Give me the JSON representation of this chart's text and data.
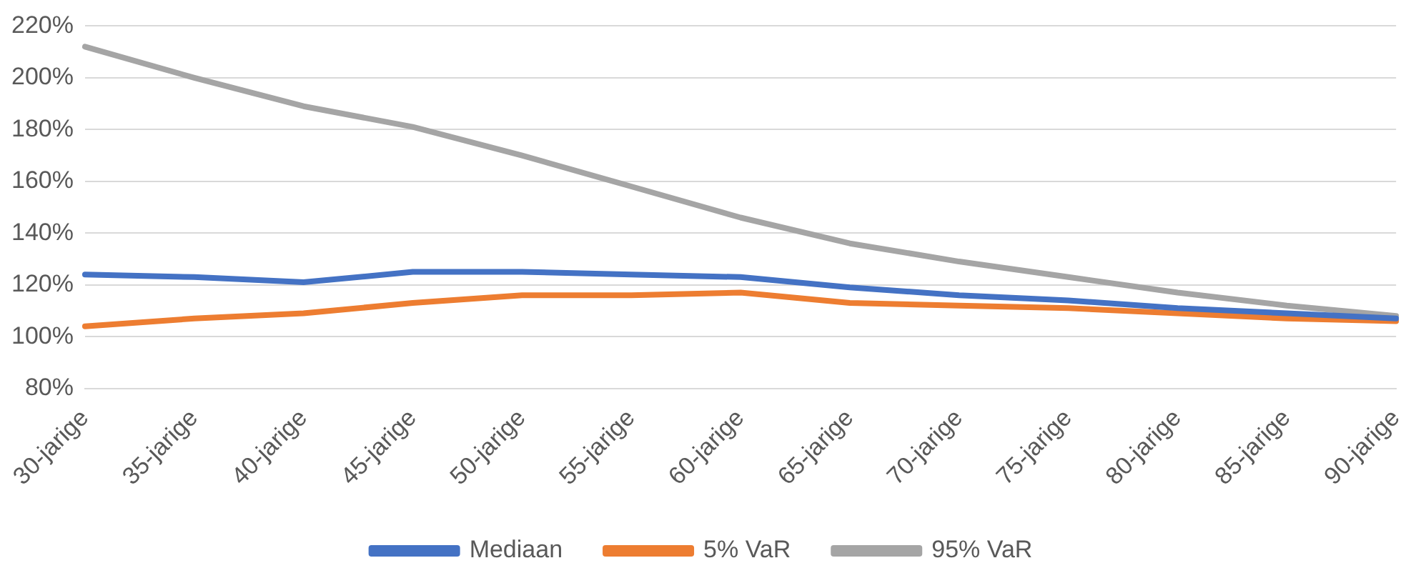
{
  "chart_data": {
    "type": "line",
    "categories": [
      "30-jarige",
      "35-jarige",
      "40-jarige",
      "45-jarige",
      "50-jarige",
      "55-jarige",
      "60-jarige",
      "65-jarige",
      "70-jarige",
      "75-jarige",
      "80-jarige",
      "85-jarige",
      "90-jarige"
    ],
    "series": [
      {
        "name": "Mediaan",
        "color": "#4472c4",
        "values": [
          124,
          123,
          121,
          125,
          125,
          124,
          123,
          119,
          116,
          114,
          111,
          109,
          107
        ]
      },
      {
        "name": "5% VaR",
        "color": "#ed7d31",
        "values": [
          104,
          107,
          109,
          113,
          116,
          116,
          117,
          113,
          112,
          111,
          109,
          107,
          106
        ]
      },
      {
        "name": "95% VaR",
        "color": "#a5a5a5",
        "values": [
          212,
          200,
          189,
          181,
          170,
          158,
          146,
          136,
          129,
          123,
          117,
          112,
          108
        ]
      }
    ],
    "ylim": [
      80,
      220
    ],
    "yticks": [
      {
        "value": 80,
        "label": "80%"
      },
      {
        "value": 100,
        "label": "100%"
      },
      {
        "value": 120,
        "label": "120%"
      },
      {
        "value": 140,
        "label": "140%"
      },
      {
        "value": 160,
        "label": "160%"
      },
      {
        "value": 180,
        "label": "180%"
      },
      {
        "value": 200,
        "label": "200%"
      },
      {
        "value": 220,
        "label": "220%"
      }
    ],
    "grid": "y",
    "legend": "bottom",
    "marker": "none",
    "line_style": "solid"
  }
}
